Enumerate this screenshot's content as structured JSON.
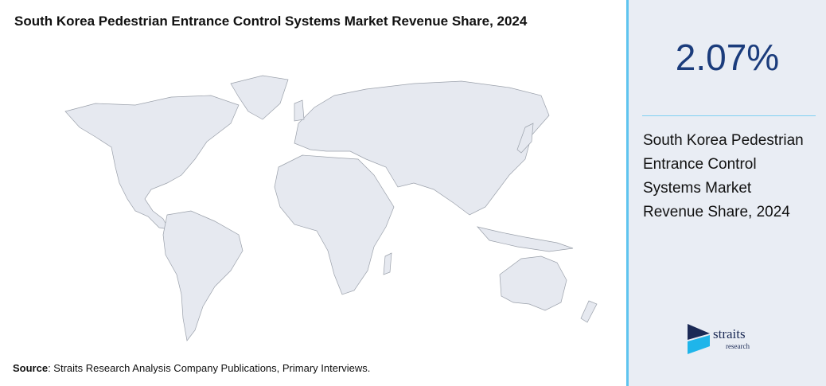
{
  "header": {
    "title": "South Korea Pedestrian Entrance Control Systems Market Revenue Share, 2024"
  },
  "stat": {
    "value": "2.07%",
    "description": "South Korea Pedestrian Entrance Control Systems Market Revenue Share, 2024"
  },
  "source": {
    "label": "Source",
    "text": ": Straits Research Analysis Company Publications, Primary Interviews."
  },
  "logo": {
    "name": "straits",
    "tagline": "research"
  }
}
